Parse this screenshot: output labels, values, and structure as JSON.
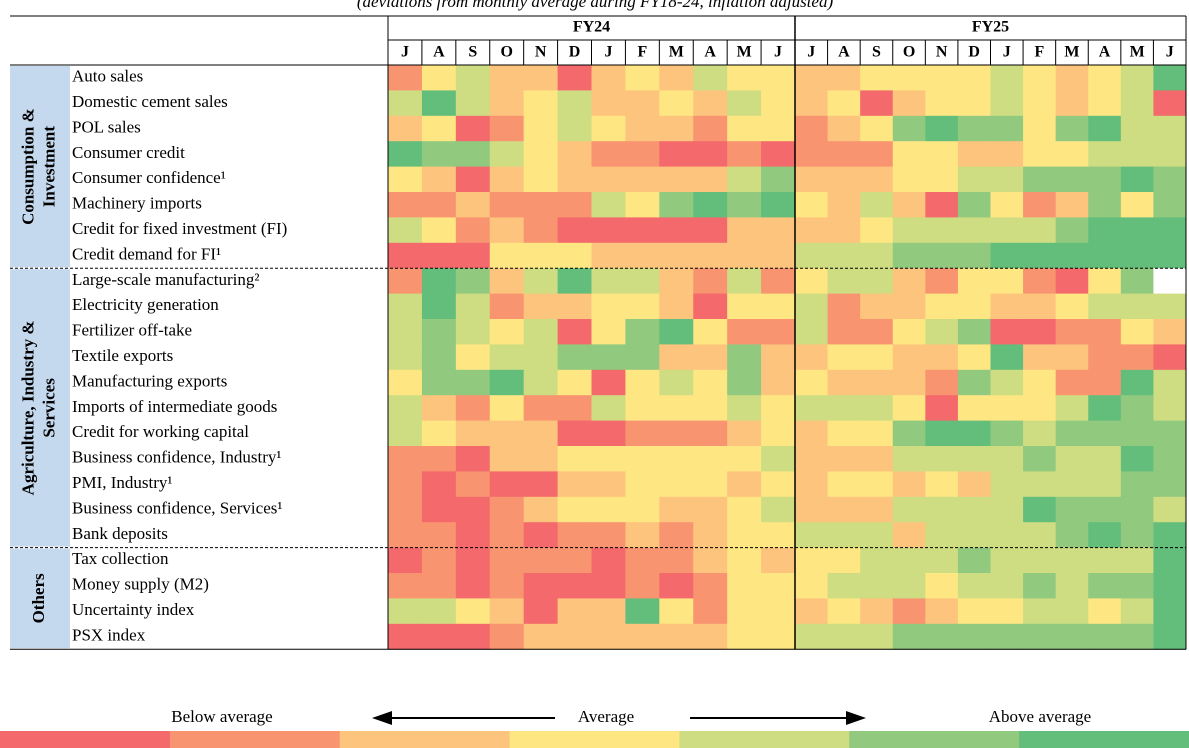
{
  "chart_data": {
    "type": "heatmap",
    "subtitle": "(deviations from monthly average during FY18-24, inflation adjusted)",
    "periods": [
      {
        "name": "FY24",
        "months": [
          "J",
          "A",
          "S",
          "O",
          "N",
          "D",
          "J",
          "F",
          "M",
          "A",
          "M",
          "J"
        ]
      },
      {
        "name": "FY25",
        "months": [
          "J",
          "A",
          "S",
          "O",
          "N",
          "D",
          "J",
          "F",
          "M",
          "A",
          "M",
          "J"
        ]
      }
    ],
    "clim": [
      -3,
      3
    ],
    "scale_colors": [
      "#f4696b",
      "#f8946f",
      "#fdc47d",
      "#fee683",
      "#cfdd82",
      "#91c97e",
      "#63be7b"
    ],
    "missing_color": "#ffffff",
    "groups": [
      {
        "name_lines": [
          "Consumption &",
          "Investment"
        ],
        "rows": [
          {
            "label": "Auto sales",
            "values": [
              -2,
              0,
              1,
              -1,
              -1,
              -3,
              -1,
              0,
              -1,
              1,
              0,
              0,
              -1,
              -1,
              0,
              0,
              0,
              0,
              1,
              0,
              -1,
              0,
              1,
              3
            ]
          },
          {
            "label": "Domestic cement sales",
            "values": [
              1,
              3,
              1,
              -1,
              0,
              1,
              -1,
              -1,
              0,
              -1,
              1,
              0,
              -1,
              0,
              -3,
              -1,
              0,
              0,
              1,
              0,
              -1,
              0,
              1,
              -3
            ]
          },
          {
            "label": "POL sales",
            "values": [
              -1,
              0,
              -3,
              -2,
              0,
              1,
              0,
              -1,
              -1,
              -2,
              0,
              0,
              -2,
              -1,
              0,
              2,
              3,
              2,
              2,
              0,
              2,
              3,
              1,
              1
            ]
          },
          {
            "label": "Consumer credit",
            "values": [
              3,
              2,
              2,
              1,
              0,
              -1,
              -2,
              -2,
              -3,
              -3,
              -2,
              -3,
              -2,
              -2,
              -2,
              0,
              0,
              -1,
              -1,
              0,
              0,
              1,
              1,
              1
            ]
          },
          {
            "label": "Consumer confidence¹",
            "values": [
              0,
              -1,
              -3,
              -1,
              0,
              -1,
              -1,
              -1,
              -1,
              -1,
              1,
              2,
              -1,
              -1,
              -1,
              0,
              0,
              1,
              1,
              2,
              2,
              2,
              3,
              2
            ]
          },
          {
            "label": "Machinery imports",
            "values": [
              -2,
              -2,
              -1,
              -2,
              -2,
              -2,
              1,
              0,
              2,
              3,
              2,
              3,
              0,
              -1,
              1,
              -1,
              -3,
              2,
              0,
              -2,
              -1,
              2,
              0,
              2
            ]
          },
          {
            "label": "Credit for fixed investment (FI)",
            "values": [
              1,
              0,
              -2,
              -1,
              -2,
              -3,
              -3,
              -3,
              -3,
              -3,
              -1,
              -1,
              -1,
              -1,
              0,
              1,
              1,
              1,
              1,
              1,
              2,
              3,
              3,
              3
            ]
          },
          {
            "label": "Credit demand for FI¹",
            "values": [
              -3,
              -3,
              -3,
              0,
              0,
              0,
              -1,
              -1,
              -1,
              -1,
              -1,
              -1,
              1,
              1,
              1,
              2,
              2,
              2,
              3,
              3,
              3,
              3,
              3,
              3
            ]
          }
        ]
      },
      {
        "name_lines": [
          "Agriculture, Industry &",
          "Services"
        ],
        "rows": [
          {
            "label": "Large-scale manufacturing²",
            "values": [
              -2,
              3,
              2,
              -1,
              1,
              3,
              1,
              1,
              -1,
              -2,
              1,
              -2,
              0,
              1,
              1,
              -1,
              -2,
              0,
              0,
              -2,
              -3,
              0,
              2,
              null
            ]
          },
          {
            "label": "Electricity generation",
            "values": [
              1,
              3,
              1,
              -2,
              -1,
              -1,
              0,
              0,
              -1,
              -3,
              0,
              0,
              1,
              -2,
              -1,
              -1,
              0,
              0,
              -1,
              -1,
              0,
              1,
              1,
              1
            ]
          },
          {
            "label": "Fertilizer off-take",
            "values": [
              1,
              2,
              1,
              0,
              1,
              -3,
              0,
              2,
              3,
              0,
              -2,
              -2,
              1,
              -2,
              -2,
              0,
              1,
              2,
              -3,
              -3,
              -2,
              -2,
              0,
              -1
            ]
          },
          {
            "label": "Textile exports",
            "values": [
              1,
              2,
              0,
              1,
              1,
              2,
              2,
              2,
              -1,
              -1,
              2,
              -1,
              -1,
              0,
              0,
              -1,
              -1,
              0,
              3,
              -1,
              -1,
              -2,
              -2,
              -3
            ]
          },
          {
            "label": "Manufacturing exports",
            "values": [
              0,
              2,
              2,
              3,
              1,
              0,
              -3,
              0,
              1,
              0,
              2,
              -1,
              0,
              -1,
              -1,
              -1,
              -2,
              2,
              1,
              0,
              -2,
              -2,
              3,
              1
            ]
          },
          {
            "label": "Imports of intermediate goods",
            "values": [
              1,
              -1,
              -2,
              0,
              -2,
              -2,
              1,
              0,
              0,
              0,
              1,
              0,
              1,
              1,
              1,
              0,
              -3,
              0,
              0,
              0,
              1,
              3,
              2,
              1
            ]
          },
          {
            "label": "Credit for working capital",
            "values": [
              1,
              0,
              -1,
              -1,
              -1,
              -3,
              -3,
              -2,
              -2,
              -2,
              -1,
              0,
              -1,
              0,
              0,
              2,
              3,
              3,
              2,
              1,
              2,
              2,
              2,
              2
            ]
          },
          {
            "label": "Business confidence, Industry¹",
            "values": [
              -2,
              -2,
              -3,
              -1,
              -1,
              0,
              0,
              0,
              0,
              0,
              0,
              1,
              -1,
              -1,
              -1,
              1,
              1,
              1,
              1,
              2,
              1,
              1,
              3,
              2
            ]
          },
          {
            "label": "PMI, Industry¹",
            "values": [
              -2,
              -3,
              -2,
              -3,
              -3,
              -1,
              -1,
              0,
              0,
              0,
              -1,
              0,
              -1,
              0,
              0,
              -1,
              0,
              -1,
              1,
              1,
              1,
              1,
              2,
              2
            ]
          },
          {
            "label": "Business confidence, Services¹",
            "values": [
              -2,
              -3,
              -3,
              -2,
              -1,
              0,
              0,
              0,
              -1,
              -1,
              0,
              1,
              -1,
              -1,
              -1,
              1,
              1,
              1,
              1,
              3,
              2,
              2,
              2,
              1
            ]
          },
          {
            "label": "Bank deposits",
            "values": [
              -2,
              -2,
              -3,
              -2,
              -3,
              -2,
              -2,
              -1,
              -2,
              -1,
              0,
              0,
              1,
              1,
              1,
              -1,
              1,
              1,
              1,
              1,
              2,
              3,
              2,
              3
            ]
          }
        ]
      },
      {
        "name_lines": [
          "Others"
        ],
        "rows": [
          {
            "label": "Tax collection",
            "values": [
              -3,
              -2,
              -3,
              -2,
              -2,
              -2,
              -3,
              -2,
              -2,
              -1,
              0,
              -1,
              0,
              0,
              1,
              1,
              1,
              2,
              1,
              1,
              1,
              1,
              1,
              3
            ]
          },
          {
            "label": "Money supply (M2)",
            "values": [
              -2,
              -2,
              -3,
              -2,
              -3,
              -3,
              -3,
              -2,
              -3,
              -2,
              0,
              0,
              0,
              1,
              1,
              1,
              0,
              1,
              1,
              2,
              1,
              2,
              2,
              3
            ]
          },
          {
            "label": "Uncertainty index",
            "values": [
              1,
              1,
              0,
              -1,
              -3,
              -1,
              -1,
              3,
              0,
              -2,
              0,
              0,
              -1,
              0,
              -1,
              -2,
              -1,
              0,
              0,
              1,
              1,
              0,
              1,
              3
            ]
          },
          {
            "label": "PSX index",
            "values": [
              -3,
              -3,
              -3,
              -2,
              -1,
              -1,
              -1,
              -1,
              -1,
              -1,
              0,
              0,
              1,
              1,
              1,
              2,
              2,
              2,
              2,
              2,
              2,
              2,
              2,
              3
            ]
          }
        ]
      }
    ],
    "legend": {
      "below": "Below average",
      "middle": "Average",
      "above": "Above average"
    }
  }
}
